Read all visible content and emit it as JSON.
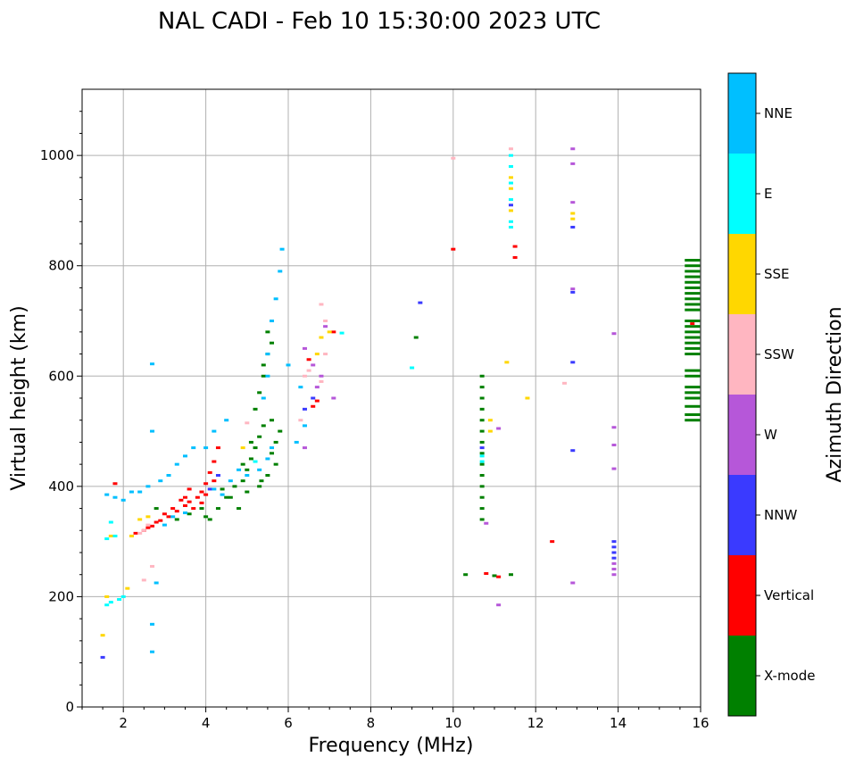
{
  "chart_data": {
    "type": "scatter",
    "title": "NAL CADI - Feb 10 15:30:00 2023 UTC",
    "xlabel": "Frequency (MHz)",
    "ylabel": "Virtual height (km)",
    "xlim": [
      1,
      16
    ],
    "ylim": [
      0,
      1120
    ],
    "x_ticks": [
      "2",
      "4",
      "6",
      "8",
      "10",
      "12",
      "14",
      "16"
    ],
    "y_ticks": [
      "0",
      "200",
      "400",
      "600",
      "800",
      "1000"
    ],
    "grid": true,
    "colorbar": {
      "label": "Azimuth Direction",
      "categories": [
        {
          "name": "X-mode",
          "color": "#008000"
        },
        {
          "name": "Vertical",
          "color": "#ff0000"
        },
        {
          "name": "NNW",
          "color": "#3a3aff"
        },
        {
          "name": "W",
          "color": "#b657d9"
        },
        {
          "name": "SSW",
          "color": "#ffb6c1"
        },
        {
          "name": "SSE",
          "color": "#ffd700"
        },
        {
          "name": "E",
          "color": "#00ffff"
        },
        {
          "name": "NNE",
          "color": "#00bfff"
        }
      ]
    },
    "series": [
      {
        "name": "X-mode",
        "points": [
          [
            4.1,
            340
          ],
          [
            4.3,
            360
          ],
          [
            4.5,
            380
          ],
          [
            4.7,
            400
          ],
          [
            4.9,
            410
          ],
          [
            5.0,
            430
          ],
          [
            5.1,
            450
          ],
          [
            5.2,
            470
          ],
          [
            5.3,
            490
          ],
          [
            5.4,
            510
          ],
          [
            5.2,
            540
          ],
          [
            5.3,
            570
          ],
          [
            5.4,
            600
          ],
          [
            5.5,
            640
          ],
          [
            5.5,
            680
          ],
          [
            5.6,
            460
          ],
          [
            5.7,
            480
          ],
          [
            5.5,
            420
          ],
          [
            5.3,
            400
          ],
          [
            5.0,
            390
          ],
          [
            4.6,
            380
          ],
          [
            4.8,
            360
          ],
          [
            3.9,
            360
          ],
          [
            4.0,
            345
          ],
          [
            3.6,
            350
          ],
          [
            5.6,
            520
          ],
          [
            5.8,
            500
          ],
          [
            4.4,
            395
          ],
          [
            4.9,
            440
          ],
          [
            5.1,
            480
          ],
          [
            5.4,
            620
          ],
          [
            5.6,
            660
          ],
          [
            5.35,
            410
          ],
          [
            5.7,
            440
          ],
          [
            10.7,
            600
          ],
          [
            10.7,
            580
          ],
          [
            10.7,
            560
          ],
          [
            10.7,
            540
          ],
          [
            10.7,
            520
          ],
          [
            10.7,
            500
          ],
          [
            10.7,
            480
          ],
          [
            10.7,
            460
          ],
          [
            10.7,
            440
          ],
          [
            10.7,
            420
          ],
          [
            10.7,
            400
          ],
          [
            10.7,
            380
          ],
          [
            10.7,
            360
          ],
          [
            10.7,
            340
          ],
          [
            10.3,
            240
          ],
          [
            11.0,
            238
          ],
          [
            11.4,
            240
          ],
          [
            15.8,
            810
          ],
          [
            15.8,
            800
          ],
          [
            15.8,
            790
          ],
          [
            15.8,
            780
          ],
          [
            15.8,
            770
          ],
          [
            15.8,
            760
          ],
          [
            15.8,
            750
          ],
          [
            15.8,
            740
          ],
          [
            15.8,
            730
          ],
          [
            15.8,
            720
          ],
          [
            15.8,
            700
          ],
          [
            15.8,
            690
          ],
          [
            15.8,
            680
          ],
          [
            15.8,
            670
          ],
          [
            15.8,
            660
          ],
          [
            15.8,
            650
          ],
          [
            15.8,
            640
          ],
          [
            15.8,
            610
          ],
          [
            15.8,
            600
          ],
          [
            15.8,
            580
          ],
          [
            15.8,
            570
          ],
          [
            15.8,
            560
          ],
          [
            15.8,
            545
          ],
          [
            15.8,
            530
          ],
          [
            15.8,
            520
          ],
          [
            9.1,
            670
          ],
          [
            2.8,
            360
          ],
          [
            3.3,
            340
          ]
        ]
      },
      {
        "name": "Vertical",
        "points": [
          [
            2.3,
            315
          ],
          [
            2.5,
            320
          ],
          [
            2.7,
            328
          ],
          [
            2.9,
            338
          ],
          [
            3.1,
            345
          ],
          [
            3.3,
            355
          ],
          [
            3.5,
            365
          ],
          [
            3.6,
            372
          ],
          [
            3.8,
            380
          ],
          [
            3.9,
            390
          ],
          [
            4.0,
            405
          ],
          [
            4.1,
            425
          ],
          [
            4.2,
            445
          ],
          [
            4.3,
            470
          ],
          [
            3.2,
            360
          ],
          [
            3.4,
            375
          ],
          [
            3.7,
            360
          ],
          [
            3.9,
            370
          ],
          [
            4.0,
            385
          ],
          [
            3.5,
            380
          ],
          [
            3.0,
            350
          ],
          [
            2.8,
            335
          ],
          [
            3.6,
            395
          ],
          [
            4.2,
            410
          ],
          [
            1.8,
            405
          ],
          [
            2.6,
            325
          ],
          [
            6.6,
            545
          ],
          [
            6.7,
            555
          ],
          [
            6.5,
            630
          ],
          [
            7.1,
            680
          ],
          [
            10.0,
            830
          ],
          [
            10.8,
            242
          ],
          [
            11.1,
            236
          ],
          [
            11.5,
            835
          ],
          [
            11.5,
            815
          ],
          [
            15.8,
            695
          ],
          [
            12.4,
            300
          ]
        ]
      },
      {
        "name": "NNW",
        "points": [
          [
            1.5,
            90
          ],
          [
            4.1,
            395
          ],
          [
            4.3,
            420
          ],
          [
            6.4,
            540
          ],
          [
            6.6,
            560
          ],
          [
            9.2,
            733
          ],
          [
            12.9,
            870
          ],
          [
            12.9,
            752
          ],
          [
            12.9,
            625
          ],
          [
            12.9,
            465
          ],
          [
            13.9,
            300
          ],
          [
            13.9,
            290
          ],
          [
            13.9,
            280
          ],
          [
            13.9,
            270
          ],
          [
            11.4,
            910
          ],
          [
            10.7,
            470
          ]
        ]
      },
      {
        "name": "W",
        "points": [
          [
            6.4,
            650
          ],
          [
            6.6,
            620
          ],
          [
            6.8,
            600
          ],
          [
            6.7,
            580
          ],
          [
            6.4,
            470
          ],
          [
            6.9,
            690
          ],
          [
            7.1,
            560
          ],
          [
            11.1,
            505
          ],
          [
            10.8,
            333
          ],
          [
            11.1,
            185
          ],
          [
            12.9,
            1012
          ],
          [
            12.9,
            985
          ],
          [
            12.9,
            915
          ],
          [
            12.9,
            758
          ],
          [
            12.9,
            225
          ],
          [
            13.9,
            677
          ],
          [
            13.9,
            507
          ],
          [
            13.9,
            475
          ],
          [
            13.9,
            432
          ],
          [
            13.9,
            260
          ],
          [
            13.9,
            250
          ],
          [
            13.9,
            240
          ]
        ]
      },
      {
        "name": "SSW",
        "points": [
          [
            2.5,
            320
          ],
          [
            2.4,
            315
          ],
          [
            2.6,
            330
          ],
          [
            2.7,
            255
          ],
          [
            2.5,
            230
          ],
          [
            6.8,
            730
          ],
          [
            6.9,
            700
          ],
          [
            6.9,
            640
          ],
          [
            6.5,
            610
          ],
          [
            6.4,
            600
          ],
          [
            6.8,
            590
          ],
          [
            6.3,
            520
          ],
          [
            12.7,
            587
          ],
          [
            11.4,
            1012
          ],
          [
            10.0,
            995
          ],
          [
            5.0,
            515
          ]
        ]
      },
      {
        "name": "SSE",
        "points": [
          [
            1.5,
            130
          ],
          [
            1.6,
            200
          ],
          [
            2.4,
            340
          ],
          [
            2.6,
            345
          ],
          [
            2.2,
            310
          ],
          [
            1.7,
            310
          ],
          [
            6.7,
            640
          ],
          [
            6.8,
            670
          ],
          [
            7.0,
            680
          ],
          [
            10.9,
            520
          ],
          [
            10.9,
            500
          ],
          [
            11.3,
            625
          ],
          [
            11.8,
            560
          ],
          [
            11.4,
            960
          ],
          [
            11.4,
            940
          ],
          [
            11.4,
            900
          ],
          [
            12.9,
            895
          ],
          [
            12.9,
            885
          ],
          [
            2.1,
            215
          ],
          [
            4.9,
            470
          ]
        ]
      },
      {
        "name": "E",
        "points": [
          [
            1.7,
            190
          ],
          [
            1.6,
            185
          ],
          [
            1.9,
            195
          ],
          [
            1.6,
            305
          ],
          [
            1.8,
            310
          ],
          [
            1.7,
            335
          ],
          [
            9.0,
            615
          ],
          [
            10.7,
            455
          ],
          [
            10.7,
            445
          ],
          [
            11.4,
            1000
          ],
          [
            11.4,
            980
          ],
          [
            11.4,
            950
          ],
          [
            11.4,
            920
          ],
          [
            11.4,
            880
          ],
          [
            11.4,
            870
          ],
          [
            2.0,
            200
          ],
          [
            5.2,
            445
          ],
          [
            7.3,
            678
          ]
        ]
      },
      {
        "name": "NNE",
        "points": [
          [
            2.4,
            390
          ],
          [
            2.6,
            400
          ],
          [
            2.9,
            410
          ],
          [
            3.1,
            420
          ],
          [
            3.3,
            440
          ],
          [
            3.5,
            455
          ],
          [
            3.7,
            470
          ],
          [
            4.0,
            470
          ],
          [
            4.2,
            500
          ],
          [
            4.5,
            520
          ],
          [
            3.0,
            330
          ],
          [
            3.2,
            345
          ],
          [
            3.5,
            352
          ],
          [
            2.7,
            622
          ],
          [
            2.7,
            500
          ],
          [
            2.7,
            150
          ],
          [
            2.7,
            100
          ],
          [
            2.8,
            225
          ],
          [
            4.2,
            395
          ],
          [
            4.4,
            385
          ],
          [
            4.6,
            410
          ],
          [
            4.8,
            430
          ],
          [
            5.0,
            420
          ],
          [
            5.3,
            430
          ],
          [
            5.5,
            450
          ],
          [
            5.6,
            470
          ],
          [
            5.4,
            560
          ],
          [
            5.5,
            600
          ],
          [
            5.5,
            640
          ],
          [
            5.6,
            700
          ],
          [
            5.7,
            740
          ],
          [
            5.8,
            790
          ],
          [
            5.85,
            830
          ],
          [
            6.0,
            620
          ],
          [
            6.3,
            580
          ],
          [
            1.6,
            385
          ],
          [
            1.8,
            380
          ],
          [
            2.0,
            375
          ],
          [
            6.4,
            510
          ],
          [
            6.2,
            480
          ],
          [
            2.2,
            390
          ]
        ]
      }
    ]
  }
}
